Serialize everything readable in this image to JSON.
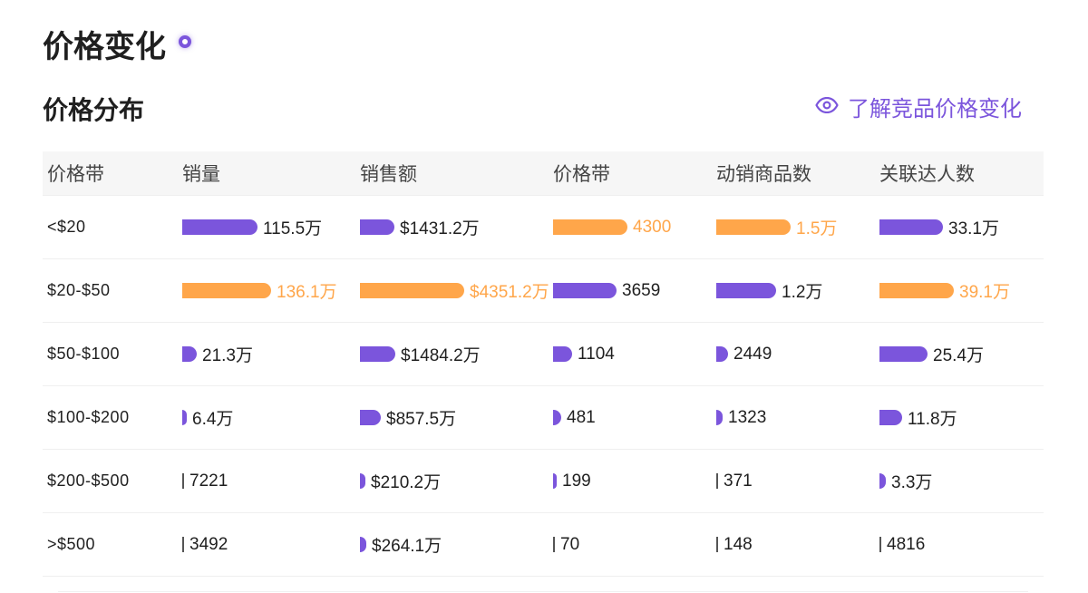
{
  "page": {
    "title": "价格变化"
  },
  "section": {
    "title": "价格分布",
    "link_label": "了解竞品价格变化"
  },
  "colors": {
    "accent": "#7b55dc",
    "highlight": "#ffa64a"
  },
  "table": {
    "headers": [
      "价格带",
      "销量",
      "销售额",
      "价格带",
      "动销商品数",
      "关联达人数"
    ],
    "rows": [
      {
        "band": "<$20",
        "cells": [
          {
            "value": "115.5万",
            "fraction": 0.85,
            "highlight": false
          },
          {
            "value": "$1431.2万",
            "fraction": 0.33,
            "highlight": false
          },
          {
            "value": "4300",
            "fraction": 1.0,
            "highlight": true
          },
          {
            "value": "1.5万",
            "fraction": 1.0,
            "highlight": true
          },
          {
            "value": "33.1万",
            "fraction": 0.85,
            "highlight": false
          }
        ]
      },
      {
        "band": "$20-$50",
        "cells": [
          {
            "value": "136.1万",
            "fraction": 1.0,
            "highlight": true
          },
          {
            "value": "$4351.2万",
            "fraction": 1.0,
            "highlight": true
          },
          {
            "value": "3659",
            "fraction": 0.85,
            "highlight": false
          },
          {
            "value": "1.2万",
            "fraction": 0.81,
            "highlight": false
          },
          {
            "value": "39.1万",
            "fraction": 1.0,
            "highlight": true
          }
        ]
      },
      {
        "band": "$50-$100",
        "cells": [
          {
            "value": "21.3万",
            "fraction": 0.16,
            "highlight": false
          },
          {
            "value": "$1484.2万",
            "fraction": 0.34,
            "highlight": false
          },
          {
            "value": "1104",
            "fraction": 0.26,
            "highlight": false
          },
          {
            "value": "2449",
            "fraction": 0.16,
            "highlight": false
          },
          {
            "value": "25.4万",
            "fraction": 0.65,
            "highlight": false
          }
        ]
      },
      {
        "band": "$100-$200",
        "cells": [
          {
            "value": "6.4万",
            "fraction": 0.05,
            "highlight": false
          },
          {
            "value": "$857.5万",
            "fraction": 0.2,
            "highlight": false
          },
          {
            "value": "481",
            "fraction": 0.11,
            "highlight": false
          },
          {
            "value": "1323",
            "fraction": 0.09,
            "highlight": false
          },
          {
            "value": "11.8万",
            "fraction": 0.3,
            "highlight": false
          }
        ]
      },
      {
        "band": "$200-$500",
        "cells": [
          {
            "value": "7221",
            "fraction": 0.005,
            "highlight": false
          },
          {
            "value": "$210.2万",
            "fraction": 0.05,
            "highlight": false
          },
          {
            "value": "199",
            "fraction": 0.05,
            "highlight": false
          },
          {
            "value": "371",
            "fraction": 0.02,
            "highlight": false
          },
          {
            "value": "3.3万",
            "fraction": 0.08,
            "highlight": false
          }
        ]
      },
      {
        "band": ">$500",
        "cells": [
          {
            "value": "3492",
            "fraction": 0.003,
            "highlight": false
          },
          {
            "value": "$264.1万",
            "fraction": 0.06,
            "highlight": false
          },
          {
            "value": "70",
            "fraction": 0.016,
            "highlight": false
          },
          {
            "value": "148",
            "fraction": 0.01,
            "highlight": false
          },
          {
            "value": "4816",
            "fraction": 0.012,
            "highlight": false
          }
        ]
      }
    ]
  }
}
